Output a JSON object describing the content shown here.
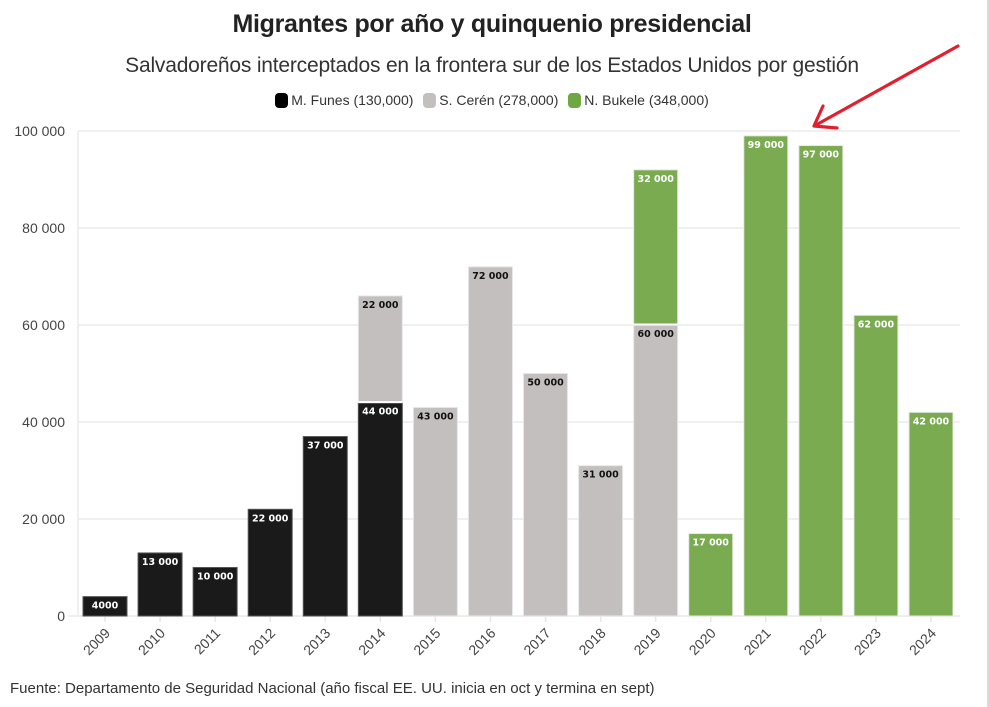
{
  "chart_data": {
    "type": "bar",
    "stacked": true,
    "title": "Migrantes por año y quinquenio presidencial",
    "subtitle": "Salvadoreños interceptados en la frontera sur de los Estados Unidos por gestión",
    "xlabel": "",
    "ylabel": "",
    "ylim": [
      0,
      100000
    ],
    "yticks": [
      0,
      20000,
      40000,
      60000,
      80000,
      100000
    ],
    "ytick_labels": [
      "0",
      "20 000",
      "40 000",
      "60 000",
      "80 000",
      "100 000"
    ],
    "grid": true,
    "legend_position": "top-center",
    "categories": [
      "2009",
      "2010",
      "2011",
      "2012",
      "2013",
      "2014",
      "2015",
      "2016",
      "2017",
      "2018",
      "2019",
      "2020",
      "2021",
      "2022",
      "2023",
      "2024"
    ],
    "series": [
      {
        "name": "M. Funes (130,000)",
        "color": "#1a1a1a",
        "label_color": "#ffffff",
        "values": [
          4000,
          13000,
          10000,
          22000,
          37000,
          44000,
          0,
          0,
          0,
          0,
          0,
          0,
          0,
          0,
          0,
          0
        ],
        "labels": [
          "4000",
          "13 000",
          "10 000",
          "22 000",
          "37 000",
          "44 000",
          "",
          "",
          "",
          "",
          "",
          "",
          "",
          "",
          "",
          ""
        ]
      },
      {
        "name": "S. Cerén (278,000)",
        "color": "#c4bfbf",
        "label_color": "#111111",
        "values": [
          0,
          0,
          0,
          0,
          0,
          22000,
          43000,
          72000,
          50000,
          31000,
          60000,
          0,
          0,
          0,
          0,
          0
        ],
        "labels": [
          "",
          "",
          "",
          "",
          "",
          "22 000",
          "43 000",
          "72 000",
          "50 000",
          "31 000",
          "60 000",
          "",
          "",
          "",
          "",
          ""
        ]
      },
      {
        "name": "N. Bukele (348,000)",
        "color": "#7aab50",
        "label_color": "#ffffff",
        "values": [
          0,
          0,
          0,
          0,
          0,
          0,
          0,
          0,
          0,
          0,
          32000,
          17000,
          99000,
          97000,
          62000,
          42000
        ],
        "labels": [
          "",
          "",
          "",
          "",
          "",
          "",
          "",
          "",
          "",
          "",
          "32 000",
          "17 000",
          "99 000",
          "97 000",
          "62 000",
          "42 000"
        ]
      }
    ],
    "annotations": [
      {
        "type": "arrow",
        "color": "#e0202e",
        "points_to": "2021-2022"
      }
    ],
    "source": "Fuente: Departamento de Seguridad Nacional (año fiscal EE. UU. inicia en oct y termina en sept)"
  },
  "legend": [
    {
      "label": "M. Funes (130,000)",
      "color": "#000000"
    },
    {
      "label": "S. Cerén (278,000)",
      "color": "#c4bfbf"
    },
    {
      "label": "N. Bukele (348,000)",
      "color": "#6fa843"
    }
  ]
}
